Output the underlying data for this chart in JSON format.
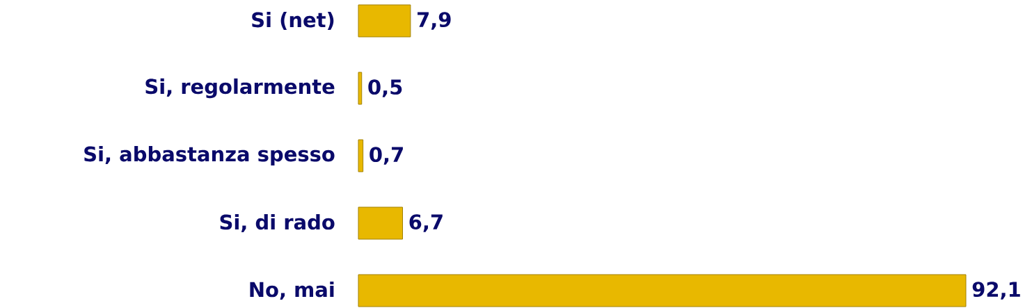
{
  "chart_data": {
    "type": "bar",
    "orientation": "horizontal",
    "categories": [
      "Si (net)",
      "Si, regolarmente",
      "Si, abbastanza spesso",
      "Si, di rado",
      "No, mai"
    ],
    "values": [
      7.9,
      0.5,
      0.7,
      6.7,
      92.1
    ],
    "value_labels": [
      "7,9",
      "0,5",
      "0,7",
      "6,7",
      "92,1"
    ],
    "color": "#e8b800"
  }
}
